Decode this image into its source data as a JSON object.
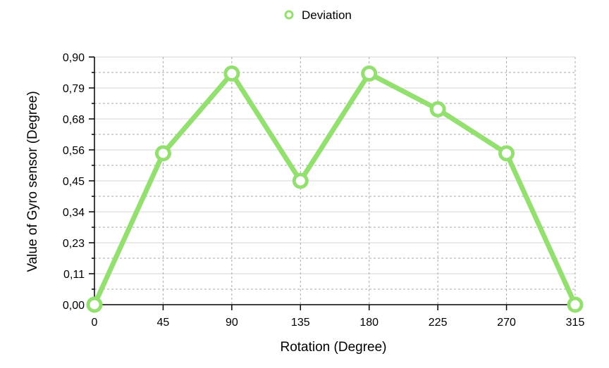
{
  "colors": {
    "series": "#93DF6F",
    "grid": "#aaaaaa",
    "axis": "#000000",
    "background": "#ffffff"
  },
  "chart_data": {
    "type": "line",
    "xlabel": "Rotation (Degree)",
    "ylabel": "Value of Gyro sensor (Degree)",
    "x": [
      0,
      45,
      90,
      135,
      180,
      225,
      270,
      315
    ],
    "x_tick_labels": [
      "0",
      "45",
      "90",
      "135",
      "180",
      "225",
      "270",
      "315"
    ],
    "y_tick_labels": [
      "0,00",
      "0,11",
      "0,23",
      "0,34",
      "0,45",
      "0,56",
      "0,68",
      "0,79",
      "0,90"
    ],
    "ylim": [
      0,
      0.9
    ],
    "xlim": [
      0,
      315
    ],
    "grid": true,
    "legend": {
      "position": "top-center"
    },
    "series": [
      {
        "name": "Deviation",
        "values": [
          0.0,
          0.55,
          0.84,
          0.45,
          0.84,
          0.71,
          0.55,
          0.0
        ]
      }
    ]
  }
}
